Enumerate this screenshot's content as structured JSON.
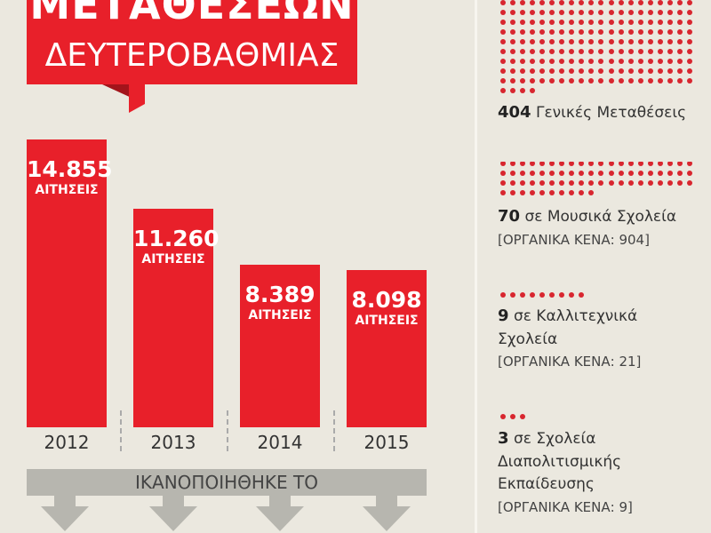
{
  "title": {
    "line1": "ΜΕΤΑΘΕΣΕΩΝ",
    "line2": "ΔΕΥΤΕΡΟΒΑΘΜΙΑΣ"
  },
  "colors": {
    "accent": "#e8202a",
    "background": "#ebe8df",
    "band": "#b7b6af",
    "dots": "#d8262f"
  },
  "chart_data": {
    "type": "bar",
    "categories": [
      "2012",
      "2013",
      "2014",
      "2015"
    ],
    "values": [
      14855,
      11260,
      8389,
      8098
    ],
    "value_labels": [
      "14.855",
      "11.260",
      "8.389",
      "8.098"
    ],
    "unit_label": "ΑΙΤΗΣΕΙΣ",
    "ylim": [
      0,
      14855
    ]
  },
  "band_label": "ΙΚΑΝΟΠΟΙΗΘΗΚΕ ΤΟ",
  "groups": [
    {
      "count": 404,
      "count_label": "404",
      "lines": [
        "Γενικές Μεταθέσεις"
      ],
      "vacancies": ""
    },
    {
      "count": 70,
      "count_label": "70",
      "lines": [
        "σε Μουσικά Σχολεία"
      ],
      "vacancies": "[ΟΡΓΑΝΙΚΑ ΚΕΝΑ: 904]"
    },
    {
      "count": 9,
      "count_label": "9",
      "lines": [
        "σε Καλλιτεχνικά",
        "Σχολεία"
      ],
      "vacancies": "[ΟΡΓΑΝΙΚΑ ΚΕΝΑ: 21]"
    },
    {
      "count": 3,
      "count_label": "3",
      "lines": [
        "σε Σχολεία",
        "Διαπολιτισμικής",
        "Εκπαίδευσης"
      ],
      "vacancies": "[ΟΡΓΑΝΙΚΑ ΚΕΝΑ: 9]"
    }
  ]
}
